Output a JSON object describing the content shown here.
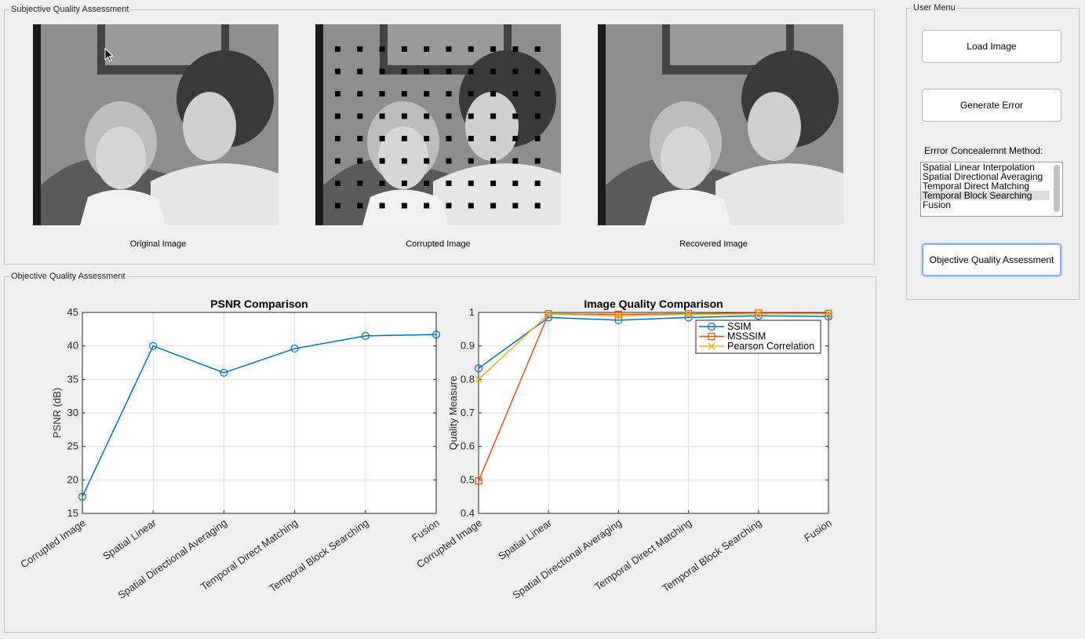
{
  "subjective_panel": {
    "title": "Subjective Quality Assessment",
    "captions": [
      "Original Image",
      "Corrupted Image",
      "Recovered Image"
    ]
  },
  "objective_panel": {
    "title": "Objective Quality Assessment"
  },
  "user_menu": {
    "title": "User Menu",
    "load_image": "Load Image",
    "generate_error": "Generate Error",
    "method_label": "Errror Concealemnt Method:",
    "methods": [
      "Spatial Linear Interpolation",
      "Spatial Directional Averaging",
      "Temporal Direct Matching",
      "Temporal Block Searching",
      "Fusion"
    ],
    "selected_method": "Temporal Block Searching",
    "objective_button": "Objective Quality Assessment"
  },
  "colors": {
    "series_blue": "#0072bd",
    "series_orange": "#d95319",
    "series_yellow": "#edb120",
    "focus_ring": "#7fb2f0"
  },
  "chart_data": [
    {
      "type": "line",
      "title": "PSNR Comparison",
      "xlabel": "",
      "ylabel": "PSNR (dB)",
      "categories": [
        "Corrupted Image",
        "Spatial Linear",
        "Spatial Directional Averaging",
        "Temporal Direct Matching",
        "Temporal Block Searching",
        "Fusion"
      ],
      "ylim": [
        15,
        45
      ],
      "yticks": [
        15,
        20,
        25,
        30,
        35,
        40,
        45
      ],
      "grid": true,
      "series": [
        {
          "values": [
            17.5,
            40.0,
            36.0,
            39.6,
            41.5,
            41.7
          ],
          "color": "#0072bd",
          "marker": "circle"
        }
      ]
    },
    {
      "type": "line",
      "title": "Image Quality Comparison",
      "xlabel": "",
      "ylabel": "Quality Measure",
      "categories": [
        "Corrupted Image",
        "Spatial Linear",
        "Spatial Directional Averaging",
        "Temporal Direct Matching",
        "Temporal Block Searching",
        "Fusion"
      ],
      "ylim": [
        0.4,
        1
      ],
      "yticks": [
        0.4,
        0.5,
        0.6,
        0.7,
        0.8,
        0.9,
        1
      ],
      "grid": true,
      "legend": "top-right",
      "series": [
        {
          "name": "SSIM",
          "values": [
            0.833,
            0.985,
            0.977,
            0.985,
            0.99,
            0.988
          ],
          "color": "#0072bd",
          "marker": "circle"
        },
        {
          "name": "MSSSIM",
          "values": [
            0.497,
            0.996,
            0.994,
            0.996,
            0.998,
            0.997
          ],
          "color": "#d95319",
          "marker": "square"
        },
        {
          "name": "Pearson Correlation",
          "values": [
            0.8,
            0.995,
            0.99,
            0.994,
            0.996,
            0.996
          ],
          "color": "#edb120",
          "marker": "x"
        }
      ]
    }
  ]
}
